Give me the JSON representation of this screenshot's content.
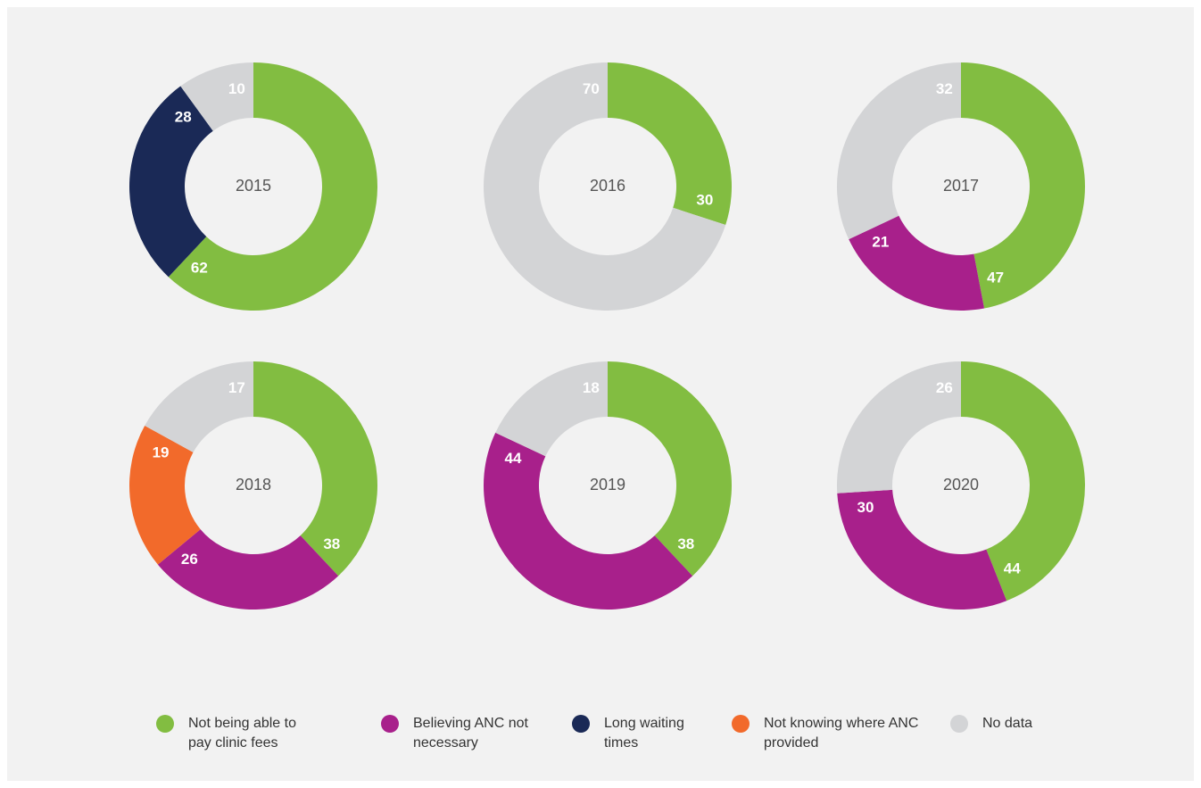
{
  "chart_data": {
    "type": "donut",
    "categories": [
      "2015",
      "2016",
      "2017",
      "2018",
      "2019",
      "2020"
    ],
    "series": [
      {
        "name": "Not being able to pay clinic fees",
        "color": "#82bd41",
        "values": [
          62,
          30,
          47,
          38,
          38,
          44
        ]
      },
      {
        "name": "Believing ANC not necessary",
        "color": "#a8208b",
        "values": [
          null,
          null,
          21,
          26,
          44,
          30
        ]
      },
      {
        "name": "Long waiting times",
        "color": "#1a2956",
        "values": [
          28,
          null,
          null,
          null,
          null,
          null
        ]
      },
      {
        "name": "Not knowing where ANC provided",
        "color": "#f26a2b",
        "values": [
          null,
          null,
          null,
          19,
          null,
          null
        ]
      },
      {
        "name": "No data",
        "color": "#d3d4d6",
        "values": [
          10,
          70,
          32,
          17,
          18,
          26
        ]
      }
    ]
  }
}
